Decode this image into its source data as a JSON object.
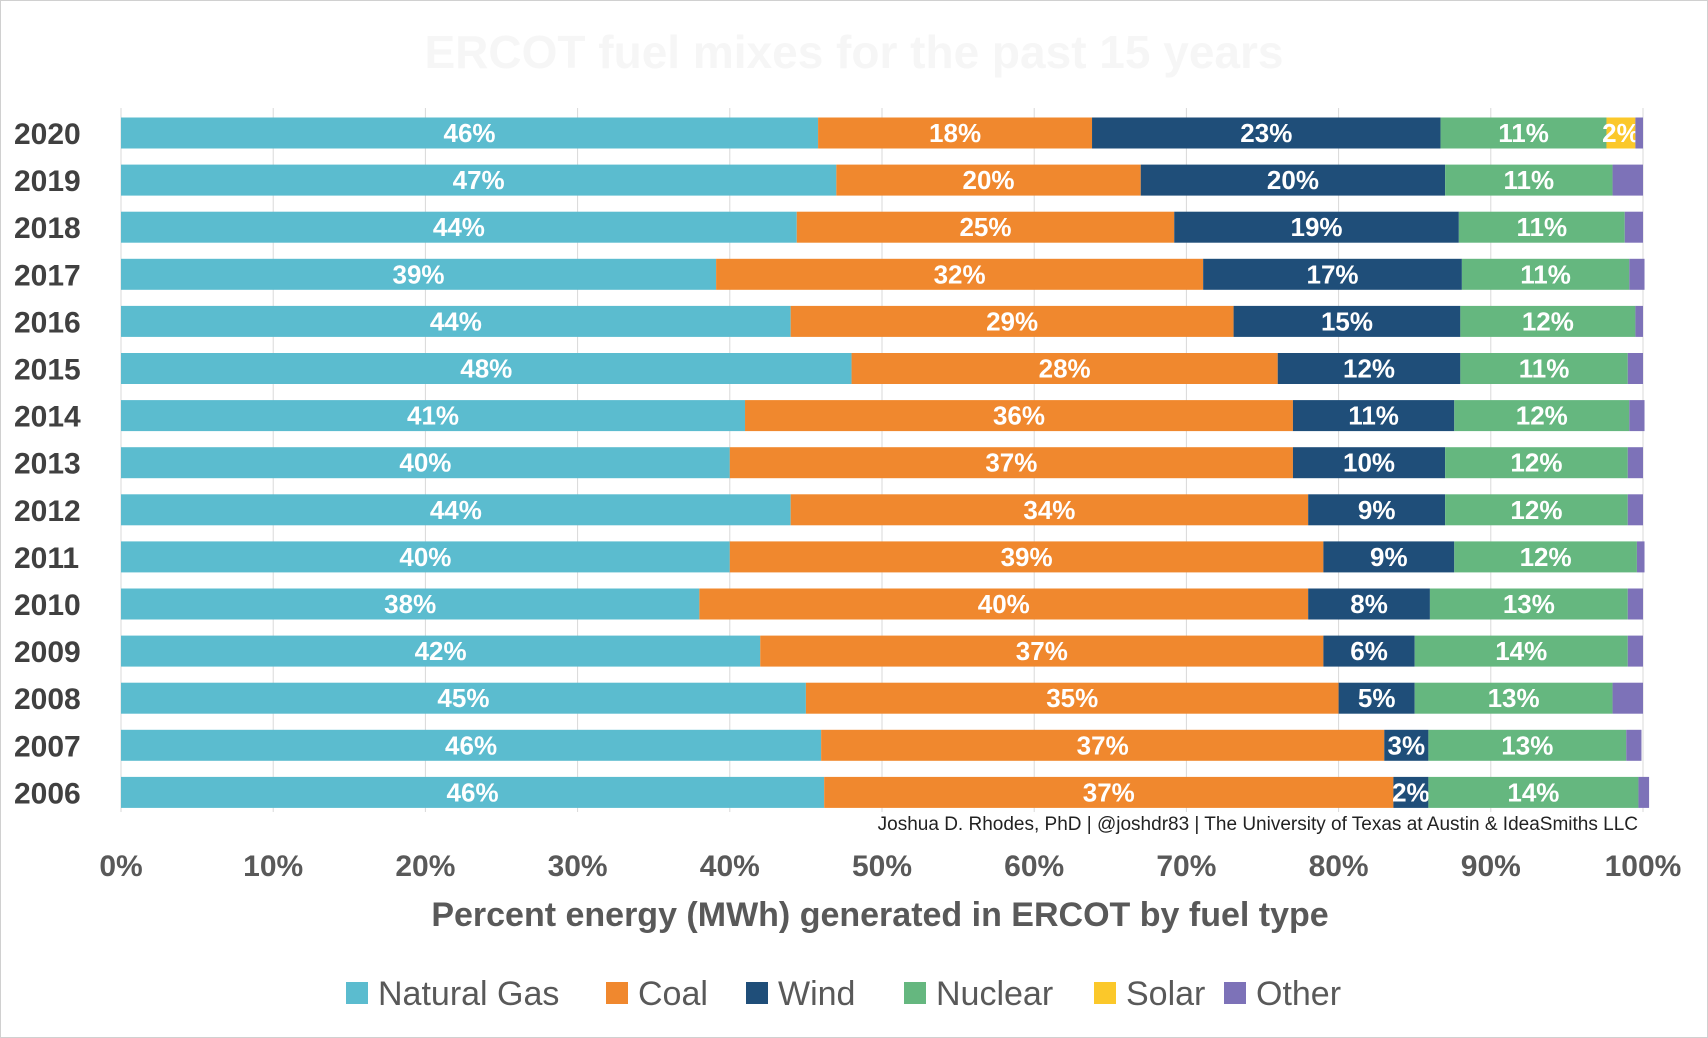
{
  "chart_data": {
    "type": "bar",
    "orientation": "horizontal",
    "stacked": true,
    "title": "ERCOT fuel mixes for the past 15 years",
    "xlabel": "Percent energy (MWh) generated in ERCOT by fuel type",
    "ylabel": "",
    "xlim": [
      0,
      100
    ],
    "xticks": [
      "0%",
      "10%",
      "20%",
      "30%",
      "40%",
      "50%",
      "60%",
      "70%",
      "80%",
      "90%",
      "100%"
    ],
    "credit": "Joshua D. Rhodes, PhD | @joshdr83 | The University of Texas at Austin & IdeaSmiths LLC",
    "legend_position": "bottom",
    "categories": [
      "2020",
      "2019",
      "2018",
      "2017",
      "2016",
      "2015",
      "2014",
      "2013",
      "2012",
      "2011",
      "2010",
      "2009",
      "2008",
      "2007",
      "2006"
    ],
    "series": [
      {
        "name": "Natural Gas",
        "color": "#5bbccf",
        "values": [
          45.8,
          47.0,
          44.4,
          39.1,
          44.0,
          48.0,
          41.0,
          40.0,
          44.0,
          40.0,
          38.0,
          42.0,
          45.0,
          46.0,
          46.2
        ],
        "labels": [
          "46%",
          "47%",
          "44%",
          "39%",
          "44%",
          "48%",
          "41%",
          "40%",
          "44%",
          "40%",
          "38%",
          "42%",
          "45%",
          "46%",
          "46%"
        ]
      },
      {
        "name": "Coal",
        "color": "#f0882e",
        "values": [
          18.0,
          20.0,
          24.8,
          32.0,
          29.1,
          28.0,
          36.0,
          37.0,
          34.0,
          39.0,
          40.0,
          37.0,
          35.0,
          37.0,
          37.4
        ],
        "labels": [
          "18%",
          "20%",
          "25%",
          "32%",
          "29%",
          "28%",
          "36%",
          "37%",
          "34%",
          "39%",
          "40%",
          "37%",
          "35%",
          "37%",
          "37%"
        ]
      },
      {
        "name": "Wind",
        "color": "#1f4e79",
        "values": [
          22.9,
          20.0,
          18.7,
          17.0,
          14.9,
          12.0,
          10.6,
          10.0,
          9.0,
          8.6,
          8.0,
          6.0,
          5.0,
          2.9,
          2.3
        ],
        "labels": [
          "23%",
          "20%",
          "19%",
          "17%",
          "15%",
          "12%",
          "11%",
          "10%",
          "9%",
          "9%",
          "8%",
          "6%",
          "5%",
          "3%",
          "2%"
        ]
      },
      {
        "name": "Nuclear",
        "color": "#65b77f",
        "values": [
          10.9,
          11.0,
          10.9,
          11.0,
          11.5,
          11.0,
          11.5,
          12.0,
          12.0,
          12.0,
          13.0,
          14.0,
          13.0,
          13.0,
          13.8
        ],
        "labels": [
          "11%",
          "11%",
          "11%",
          "11%",
          "12%",
          "11%",
          "12%",
          "12%",
          "12%",
          "12%",
          "13%",
          "14%",
          "13%",
          "13%",
          "14%"
        ]
      },
      {
        "name": "Solar",
        "color": "#fbc82a",
        "values": [
          1.9,
          0,
          0,
          0,
          0,
          0,
          0,
          0,
          0,
          0,
          0,
          0,
          0,
          0,
          0
        ],
        "labels": [
          "2%",
          "",
          "",
          "",
          "",
          "",
          "",
          "",
          "",
          "",
          "",
          "",
          "",
          "",
          ""
        ]
      },
      {
        "name": "Other",
        "color": "#7d72b8",
        "values": [
          0.5,
          2.0,
          1.2,
          1.0,
          0.5,
          1.0,
          1.0,
          1.0,
          1.0,
          0.5,
          1.0,
          1.0,
          2.0,
          1.0,
          0.7
        ],
        "labels": [
          "",
          "",
          "",
          "",
          "",
          "",
          "",
          "",
          "",
          "",
          "",
          "",
          "",
          "",
          ""
        ]
      }
    ]
  }
}
